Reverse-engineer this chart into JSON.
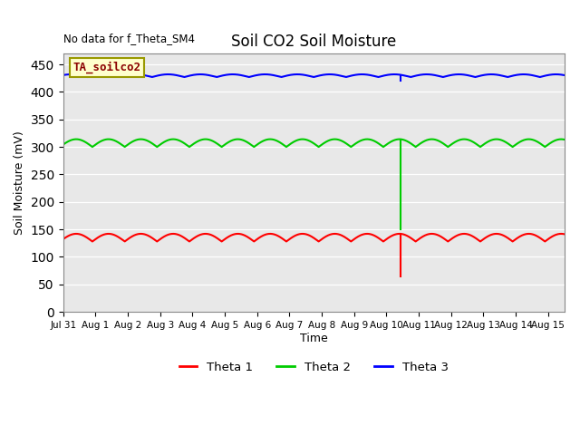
{
  "title": "Soil CO2 Soil Moisture",
  "no_data_text": "No data for f_Theta_SM4",
  "ylabel": "Soil Moisture (mV)",
  "xlabel": "Time",
  "xlim_days": [
    0,
    15.5
  ],
  "ylim": [
    0,
    470
  ],
  "yticks": [
    0,
    50,
    100,
    150,
    200,
    250,
    300,
    350,
    400,
    450
  ],
  "background_color": "#e8e8e8",
  "legend_box_text": "TA_soilco2",
  "legend_box_bg": "#ffffcc",
  "legend_box_border": "#999900",
  "theta1_color": "red",
  "theta2_color": "#00cc00",
  "theta3_color": "blue",
  "theta1_base": 128,
  "theta1_amp": 14,
  "theta2_base": 300,
  "theta2_amp": 14,
  "theta3_base": 427,
  "theta3_amp": 5,
  "wave_period": 1.0,
  "spike_day": 10.45,
  "theta1_spike_val": 65,
  "theta2_spike_val": 150,
  "theta3_spike_val": 420,
  "x_tick_labels": [
    "Jul 31",
    "Aug 1",
    "Aug 2",
    "Aug 3",
    "Aug 4",
    "Aug 5",
    "Aug 6",
    "Aug 7",
    "Aug 8",
    "Aug 9",
    "Aug 10",
    "Aug 11",
    "Aug 12",
    "Aug 13",
    "Aug 14",
    "Aug 15"
  ],
  "x_tick_positions": [
    0,
    1,
    2,
    3,
    4,
    5,
    6,
    7,
    8,
    9,
    10,
    11,
    12,
    13,
    14,
    15
  ],
  "grid_color": "#cccccc",
  "linewidth": 1.5
}
